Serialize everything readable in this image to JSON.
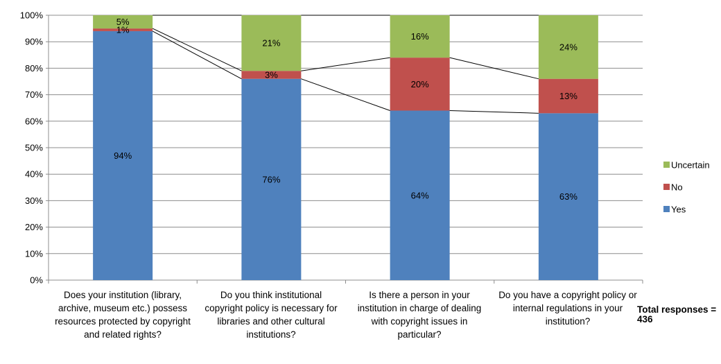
{
  "chart_data": {
    "type": "bar",
    "stacked": true,
    "categories": [
      "Does your institution (library, archive, museum etc.) possess resources protected by copyright and related rights?",
      "Do you think institutional copyright policy is necessary for libraries and other cultural institutions?",
      "Is there a person in your institution in charge of dealing with copyright issues in particular?",
      "Do you have a copyright policy or internal regulations in your institution?"
    ],
    "series": [
      {
        "name": "Yes",
        "color": "#4F81BD",
        "values": [
          94,
          76,
          64,
          63
        ],
        "labels": [
          "94%",
          "76%",
          "64%",
          "63%"
        ]
      },
      {
        "name": "No",
        "color": "#C0504D",
        "values": [
          1,
          3,
          20,
          13
        ],
        "labels": [
          "1%",
          "3%",
          "20%",
          "13%"
        ]
      },
      {
        "name": "Uncertain",
        "color": "#9BBB59",
        "values": [
          5,
          21,
          16,
          24
        ],
        "labels": [
          "5%",
          "21%",
          "16%",
          "24%"
        ]
      }
    ],
    "y_ticks": [
      "0%",
      "10%",
      "20%",
      "30%",
      "40%",
      "50%",
      "60%",
      "70%",
      "80%",
      "90%",
      "100%"
    ],
    "ylim": [
      0,
      100
    ],
    "legend": "right",
    "series_lines": true,
    "annotation": "Total responses = 436"
  }
}
